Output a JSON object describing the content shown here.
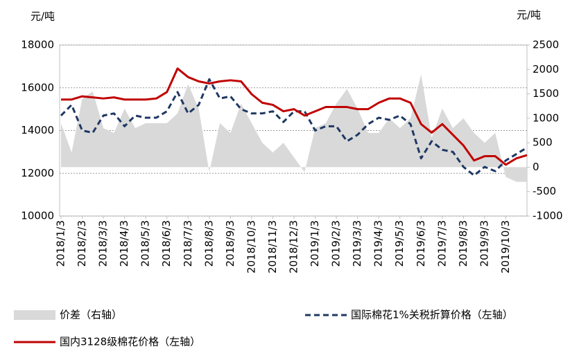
{
  "chart_data": {
    "type": "line",
    "y_label": "元/吨",
    "y2_label": "元/吨",
    "categories": [
      "2018/1/3",
      null,
      "2018/2/3",
      null,
      "2018/3/3",
      null,
      "2018/4/3",
      null,
      "2018/5/3",
      null,
      "2018/6/3",
      null,
      "2018/7/3",
      null,
      "2018/8/3",
      null,
      "2018/9/3",
      null,
      "2018/10/3",
      null,
      "2018/11/3",
      null,
      "2018/12/3",
      null,
      "2019/1/3",
      null,
      "2019/2/3",
      null,
      "2019/3/3",
      null,
      "2019/4/3",
      null,
      "2019/5/3",
      null,
      "2019/6/3",
      null,
      "2019/7/3",
      null,
      "2019/8/3",
      null,
      "2019/9/3",
      null,
      "2019/10/3",
      null,
      null
    ],
    "series": [
      {
        "name": "价差（右轴）",
        "style": "area",
        "axis": "y2",
        "color": "#d9d9d9",
        "values": [
          900,
          300,
          1400,
          1550,
          800,
          700,
          1200,
          800,
          900,
          900,
          900,
          1100,
          1700,
          1200,
          -100,
          900,
          700,
          1300,
          900,
          500,
          300,
          500,
          200,
          -100,
          800,
          900,
          1300,
          1600,
          1200,
          700,
          700,
          1000,
          800,
          1000,
          1900,
          600,
          1200,
          800,
          1000,
          700,
          500,
          700,
          -200,
          -300,
          -300
        ]
      },
      {
        "name": "国际棉花1%关税折算价格（左轴）",
        "style": "dashed",
        "axis": "y",
        "color": "#1f3864",
        "values": [
          14700,
          15200,
          14000,
          13900,
          14700,
          14800,
          14200,
          14700,
          14600,
          14600,
          14900,
          15800,
          14800,
          15200,
          16400,
          15500,
          15600,
          15000,
          14800,
          14800,
          14900,
          14400,
          14900,
          14900,
          14000,
          14200,
          14200,
          13500,
          13800,
          14300,
          14600,
          14500,
          14700,
          14300,
          12700,
          13500,
          13100,
          13000,
          12300,
          11900,
          12300,
          12100,
          12600,
          12900,
          13200
        ]
      },
      {
        "name": "国内3128级棉花价格（左轴）",
        "style": "solid",
        "axis": "y",
        "color": "#c00000",
        "values": [
          15450,
          15450,
          15600,
          15550,
          15500,
          15550,
          15450,
          15450,
          15450,
          15500,
          15800,
          16900,
          16500,
          16300,
          16200,
          16300,
          16350,
          16300,
          15700,
          15300,
          15200,
          14900,
          15000,
          14700,
          14900,
          15100,
          15100,
          15100,
          15000,
          15000,
          15300,
          15500,
          15500,
          15300,
          14300,
          13900,
          14300,
          13800,
          13300,
          12600,
          12800,
          12800,
          12400,
          12700,
          12850
        ]
      }
    ],
    "ylim": [
      10000,
      18000
    ],
    "yticks": [
      10000,
      12000,
      14000,
      16000,
      18000
    ],
    "y2lim": [
      -1000,
      2500
    ],
    "y2ticks": [
      -1000,
      -500,
      0,
      500,
      1000,
      1500,
      2000,
      2500
    ],
    "grid": true
  }
}
